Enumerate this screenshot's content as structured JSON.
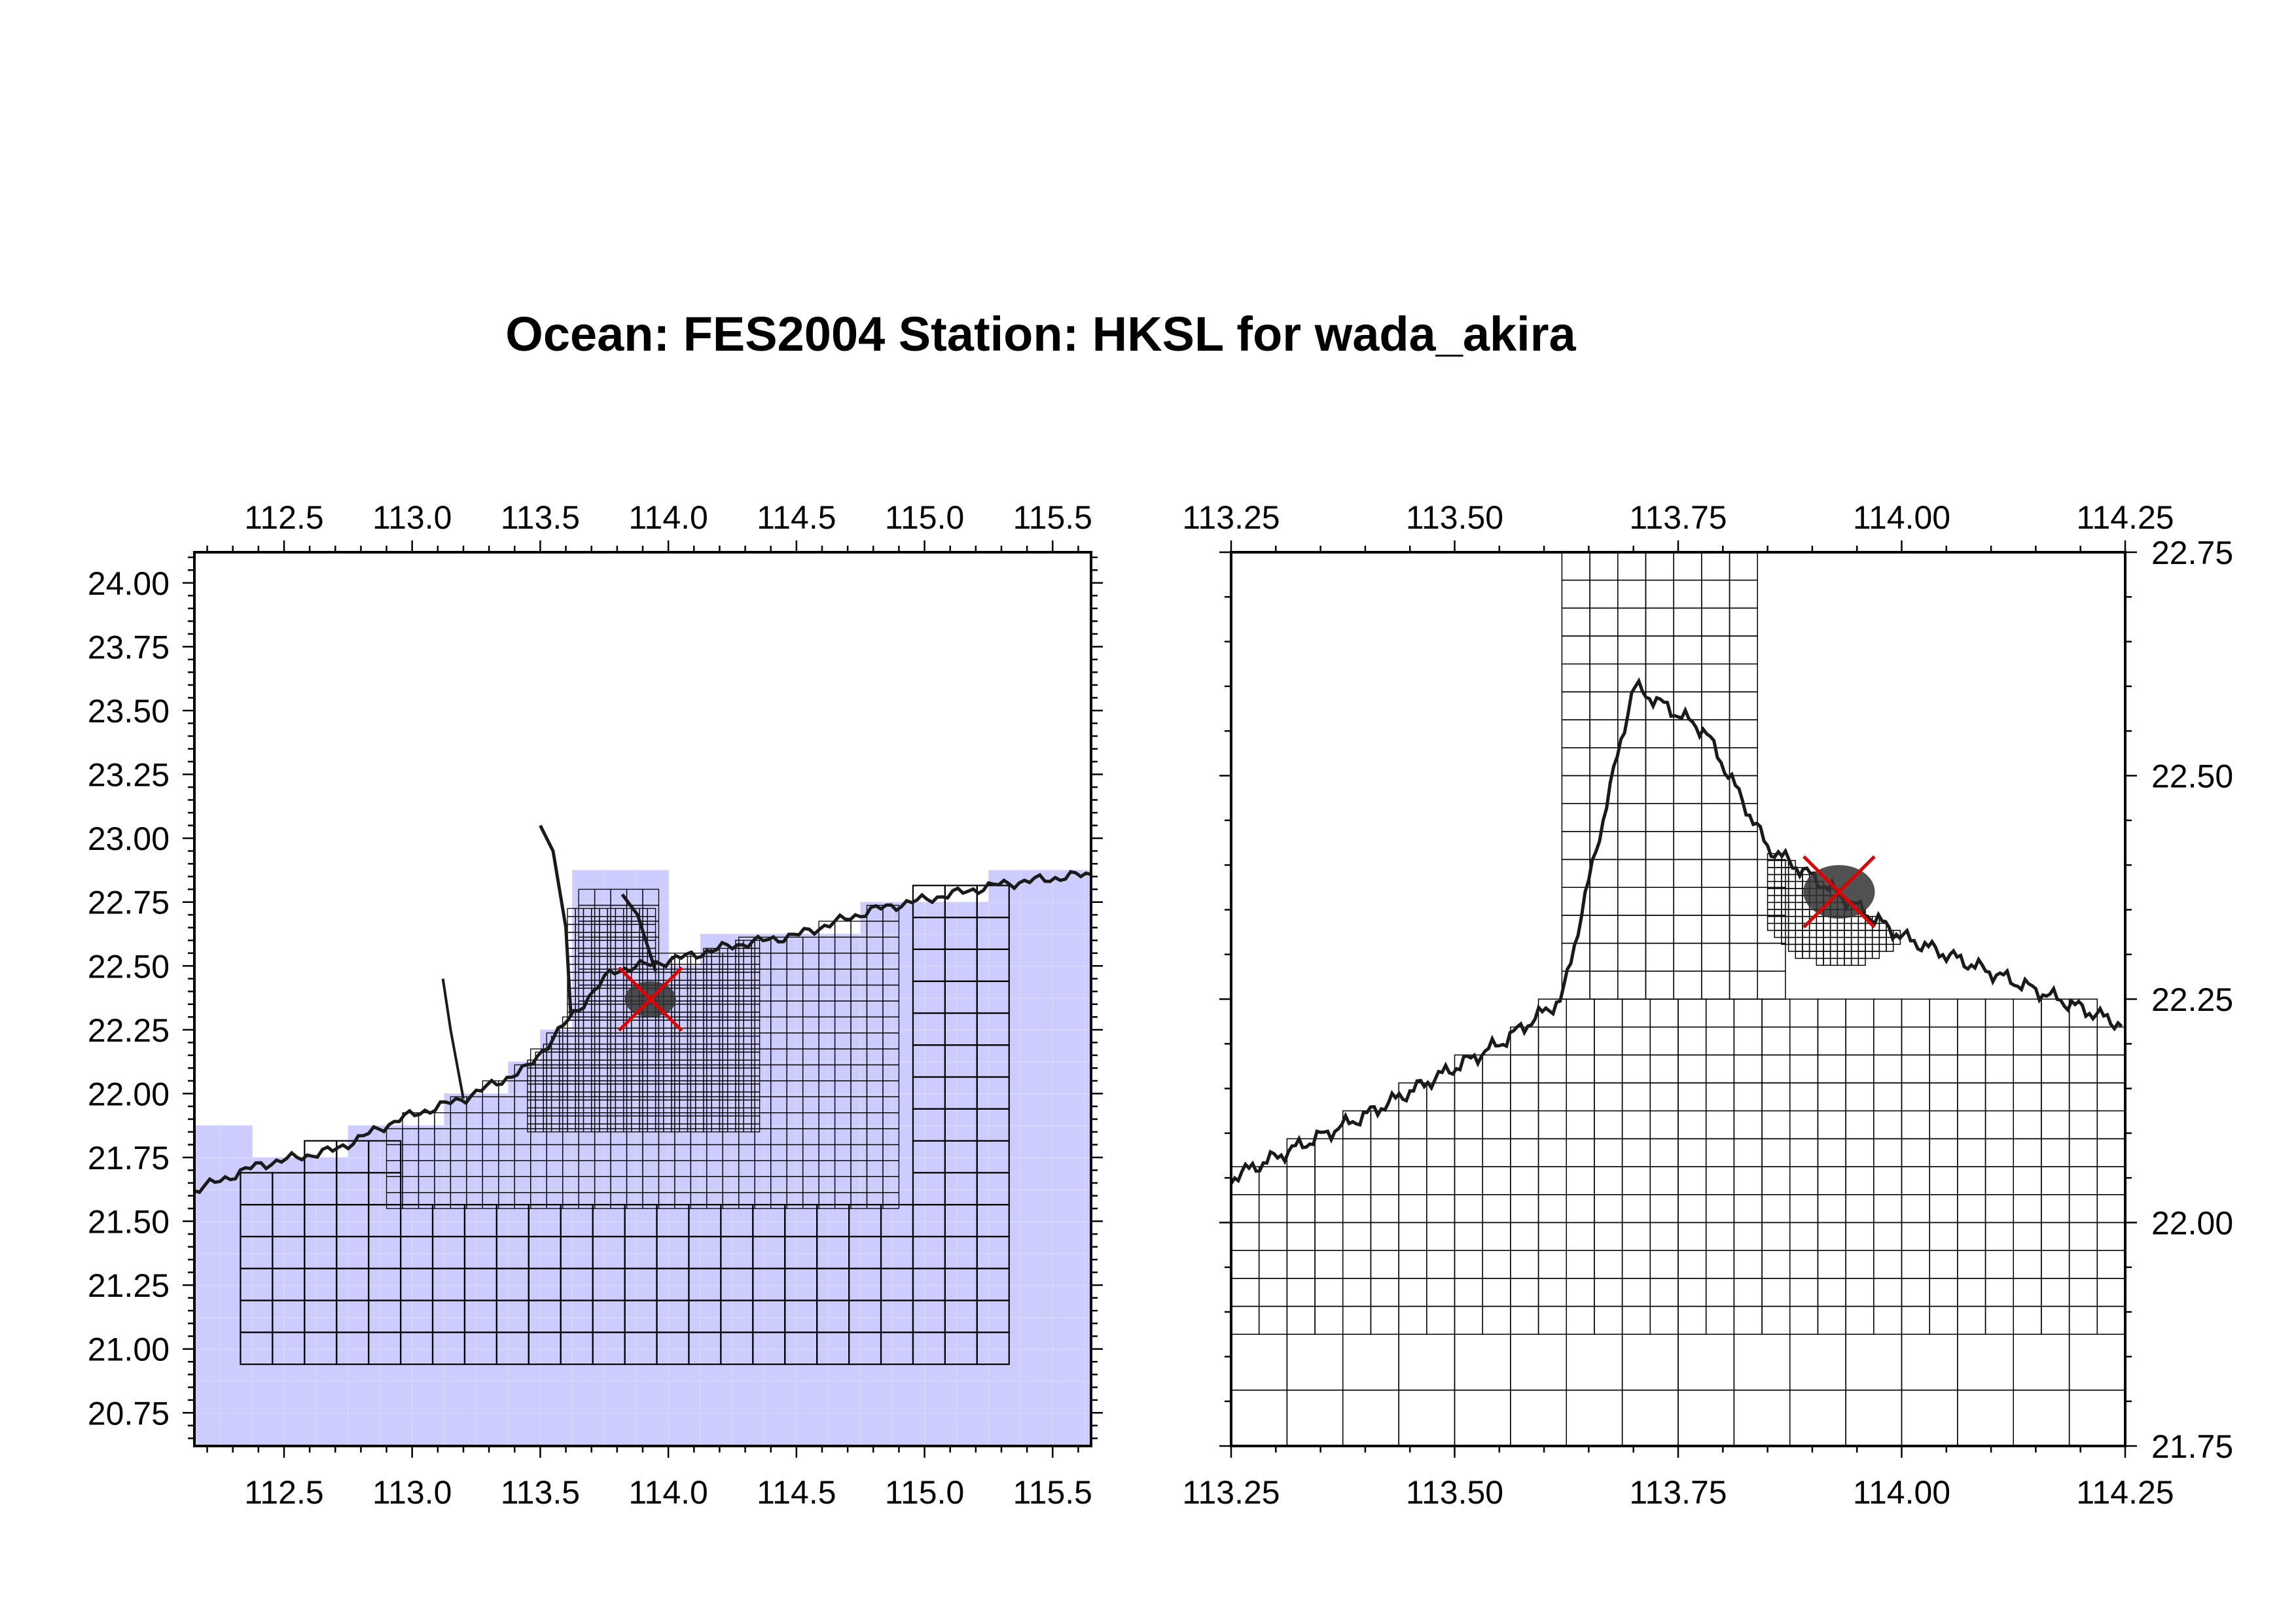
{
  "title": "Ocean: FES2004  Station: HKSL  for wada_akira",
  "colors": {
    "ocean_fill": "#ccccff",
    "grid_line": "#000000",
    "coast": "#1a1a1a",
    "station_marker": "#e00000"
  },
  "station": {
    "name": "HKSL",
    "lon": 113.93,
    "lat": 22.37,
    "marker": "red-x"
  },
  "map_left": {
    "lon_range": [
      112.15,
      115.65
    ],
    "lat_range": [
      20.62,
      24.12
    ],
    "x_ticks": [
      "112.5",
      "113.0",
      "113.5",
      "114.0",
      "114.5",
      "115.0",
      "115.5"
    ],
    "y_ticks": [
      "24.00",
      "23.75",
      "23.50",
      "23.25",
      "23.00",
      "22.75",
      "22.50",
      "22.25",
      "22.00",
      "21.75",
      "21.50",
      "21.25",
      "21.00",
      "20.75"
    ],
    "ocean_shaded": true
  },
  "map_right": {
    "lon_range": [
      113.25,
      114.25
    ],
    "lat_range": [
      21.75,
      22.75
    ],
    "x_ticks": [
      "113.25",
      "113.50",
      "113.75",
      "114.00",
      "114.25"
    ],
    "y_ticks": [
      "22.75",
      "22.50",
      "22.25",
      "22.00",
      "21.75"
    ],
    "ocean_shaded": false
  }
}
